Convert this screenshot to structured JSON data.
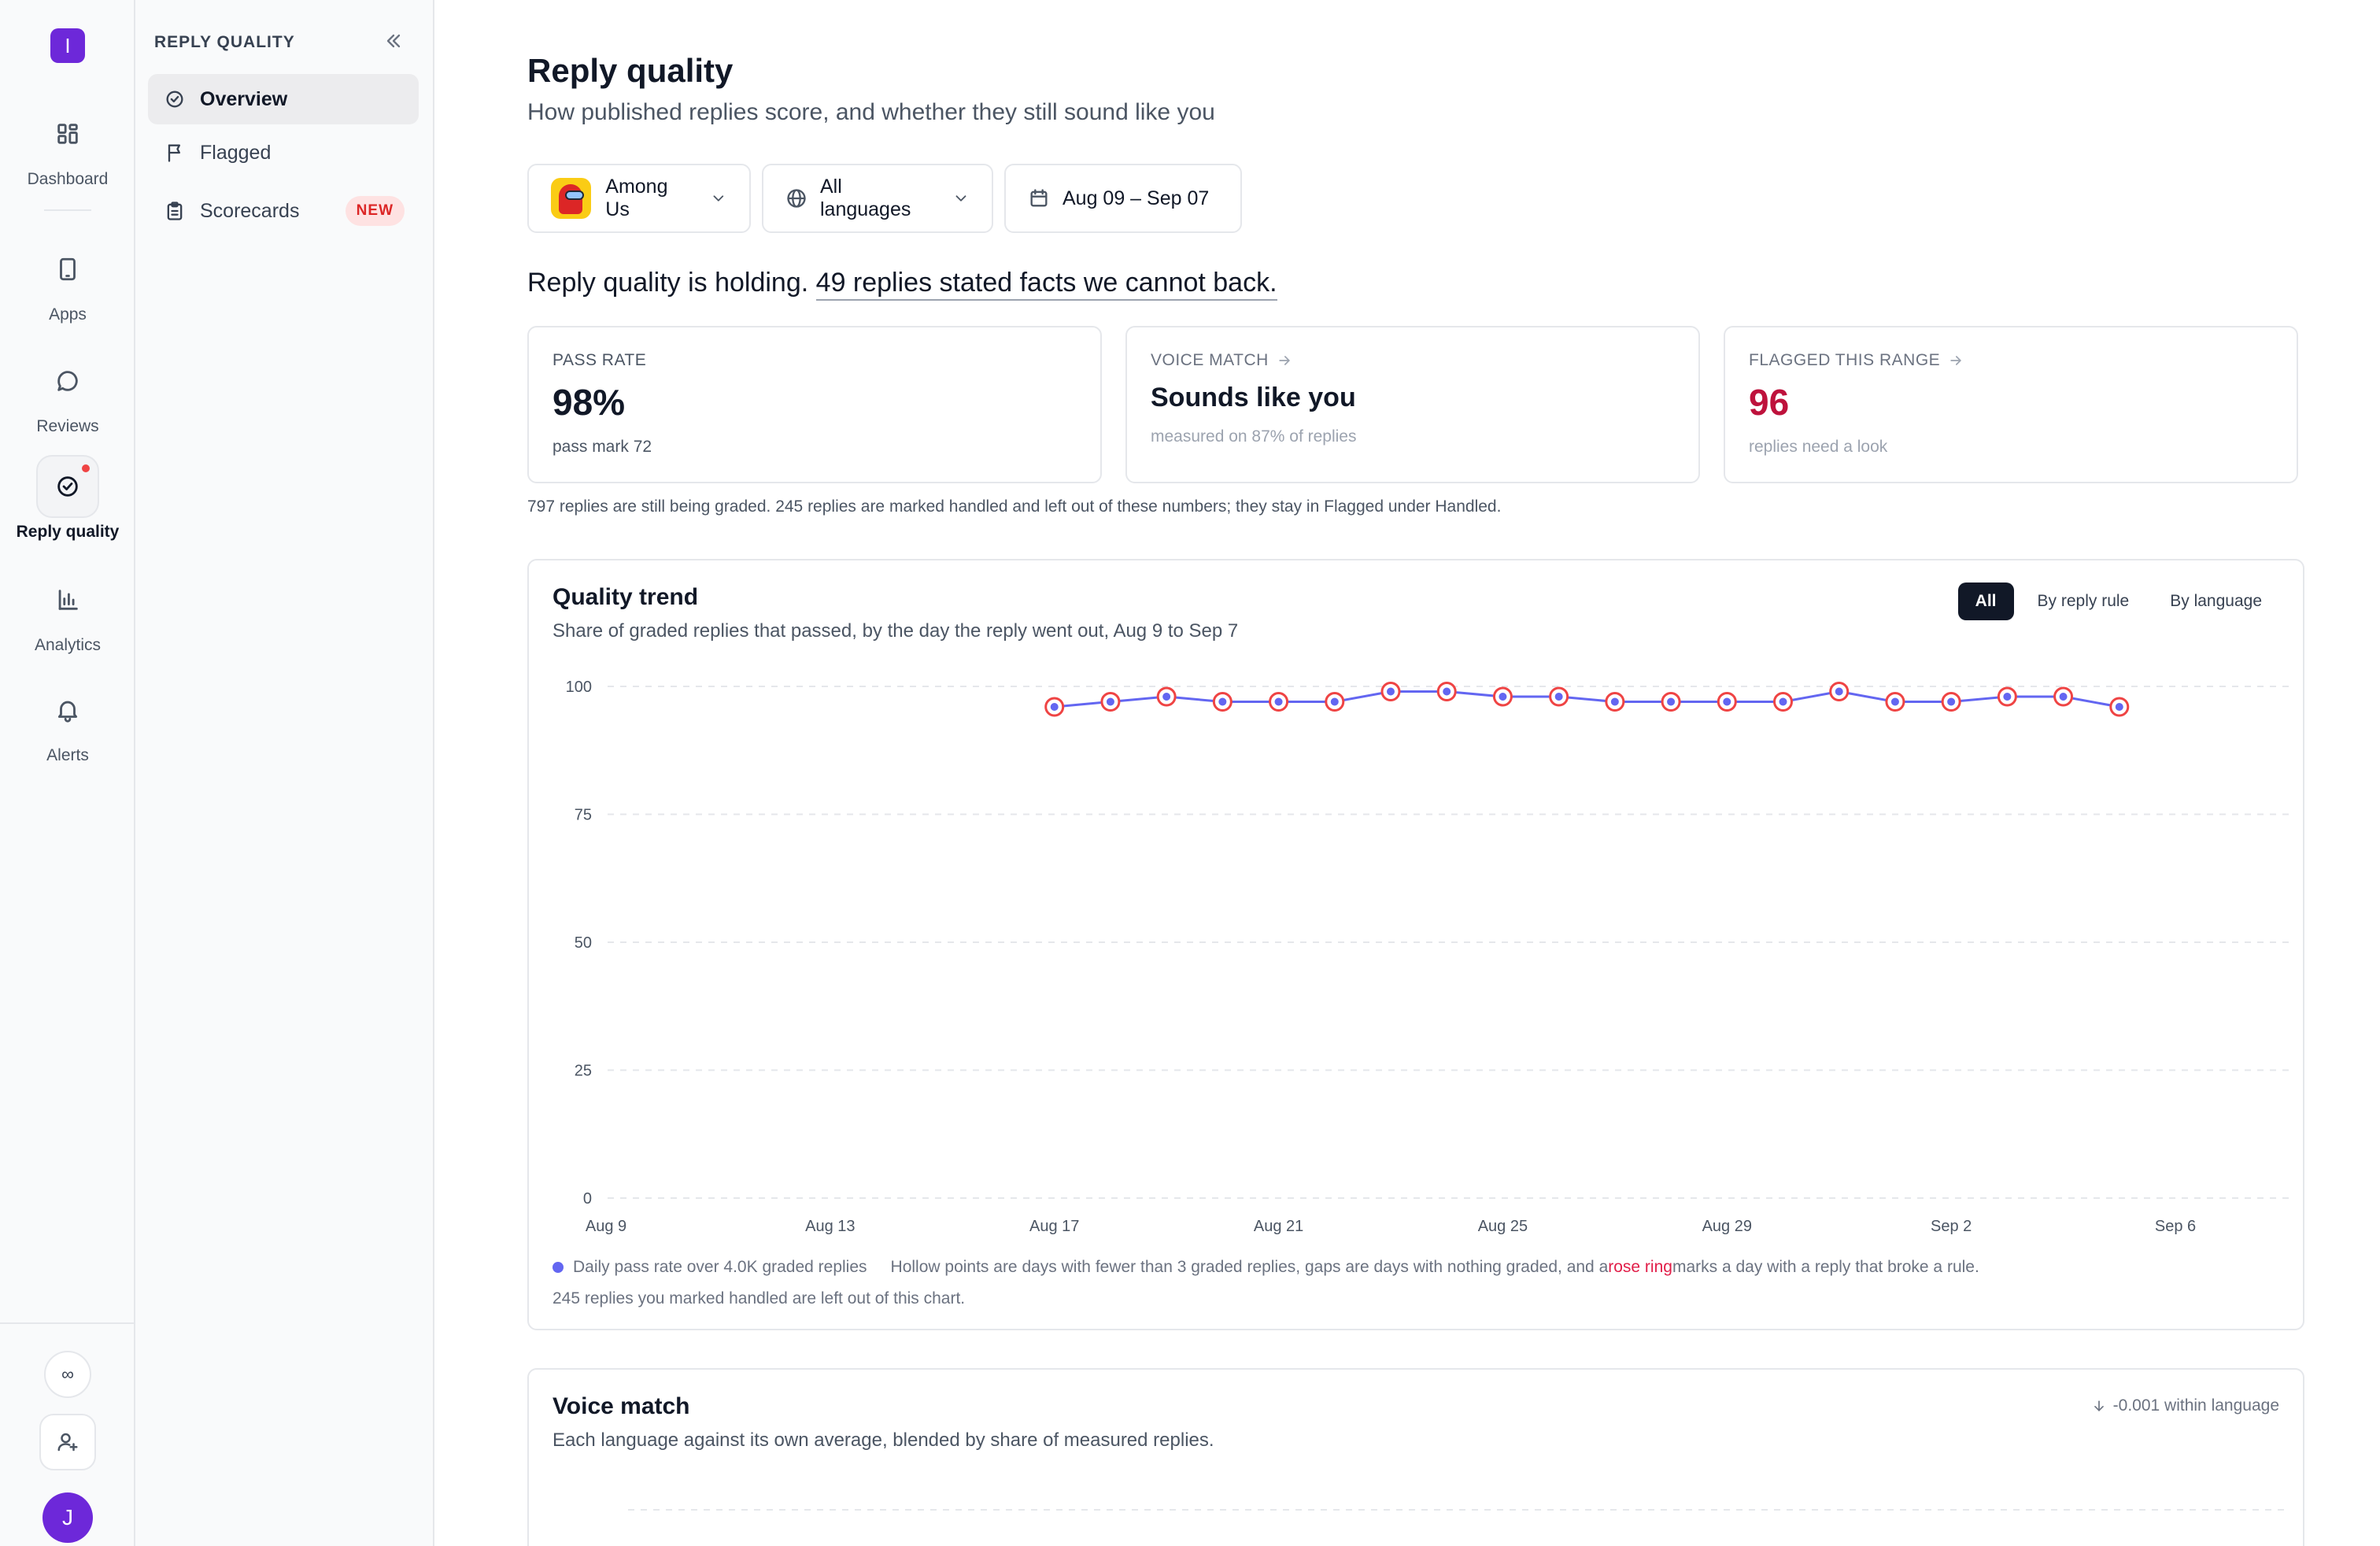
{
  "rail": {
    "logo": "I",
    "items": [
      {
        "label": "Dashboard",
        "icon": "dashboard-icon"
      },
      {
        "label": "Apps",
        "icon": "phone-icon"
      },
      {
        "label": "Reviews",
        "icon": "chat-bubble-icon"
      },
      {
        "label": "Reply quality",
        "icon": "check-circle-icon",
        "active": true,
        "has_dot": true
      },
      {
        "label": "Analytics",
        "icon": "bar-chart-icon"
      },
      {
        "label": "Alerts",
        "icon": "bell-icon"
      }
    ],
    "bottom": {
      "infinity": "∞",
      "invite_icon": "add-user-icon",
      "avatar": "J"
    }
  },
  "subnav": {
    "heading": "REPLY QUALITY",
    "items": [
      {
        "label": "Overview",
        "icon": "check-circle-icon",
        "active": true
      },
      {
        "label": "Flagged",
        "icon": "flag-icon"
      },
      {
        "label": "Scorecards",
        "icon": "clipboard-icon",
        "badge": "NEW"
      }
    ]
  },
  "page": {
    "title": "Reply quality",
    "subtitle": "How published replies score, and whether they still sound like you"
  },
  "filters": {
    "app": "Among Us",
    "language": "All languages",
    "date_range": "Aug 09 – Sep 07"
  },
  "headline": {
    "lead": "Reply quality is holding. ",
    "link": "49 replies stated facts we cannot back."
  },
  "stats": {
    "pass_rate": {
      "label": "PASS RATE",
      "value": "98%",
      "note": "pass mark 72"
    },
    "voice_match": {
      "label": "VOICE MATCH",
      "value": "Sounds like you",
      "note": "measured on 87% of replies"
    },
    "flagged": {
      "label": "FLAGGED THIS RANGE",
      "value": "96",
      "note": "replies need a look"
    }
  },
  "footnote": "797 replies are still being graded. 245 replies are marked handled and left out of these numbers; they stay in Flagged under Handled.",
  "trend": {
    "title": "Quality trend",
    "subtitle": "Share of graded replies that passed, by the day the reply went out, Aug 9 to Sep 7",
    "tabs": [
      "All",
      "By reply rule",
      "By language"
    ],
    "legend_series": "Daily pass rate over 4.0K graded replies",
    "legend_note_a": "Hollow points are days with fewer than 3 graded replies, gaps are days with nothing graded, and a ",
    "legend_rose": "rose ring",
    "legend_note_b": " marks a day with a reply that broke a rule.",
    "legend_line2": "245 replies you marked handled are left out of this chart."
  },
  "chart_data": {
    "type": "line",
    "title": "Quality trend",
    "x_ticks": [
      "Aug 9",
      "Aug 13",
      "Aug 17",
      "Aug 21",
      "Aug 25",
      "Aug 29",
      "Sep 2",
      "Sep 6"
    ],
    "y_ticks": [
      0,
      25,
      50,
      75,
      100
    ],
    "ylim": [
      0,
      100
    ],
    "x_domain": [
      "Aug 9",
      "Sep 6"
    ],
    "grid": true,
    "series": [
      {
        "name": "Daily pass rate",
        "color": "#6366f1",
        "ring_color": "#ef4444",
        "x": [
          "Aug 17",
          "Aug 18",
          "Aug 19",
          "Aug 20",
          "Aug 21",
          "Aug 22",
          "Aug 23",
          "Aug 24",
          "Aug 25",
          "Aug 26",
          "Aug 27",
          "Aug 28",
          "Aug 29",
          "Aug 30",
          "Aug 31",
          "Sep 1",
          "Sep 2",
          "Sep 3",
          "Sep 4",
          "Sep 5"
        ],
        "values": [
          96,
          97,
          98,
          97,
          97,
          97,
          99,
          99,
          98,
          98,
          97,
          97,
          97,
          97,
          99,
          97,
          97,
          98,
          98,
          96
        ]
      }
    ]
  },
  "voice": {
    "title": "Voice match",
    "subtitle": "Each language against its own average, blended by share of measured replies.",
    "delta": "-0.001 within language"
  },
  "colors": {
    "accent": "#6d28d9",
    "series": "#6366f1",
    "rose": "#e11d48",
    "flag_red": "#be123c"
  }
}
